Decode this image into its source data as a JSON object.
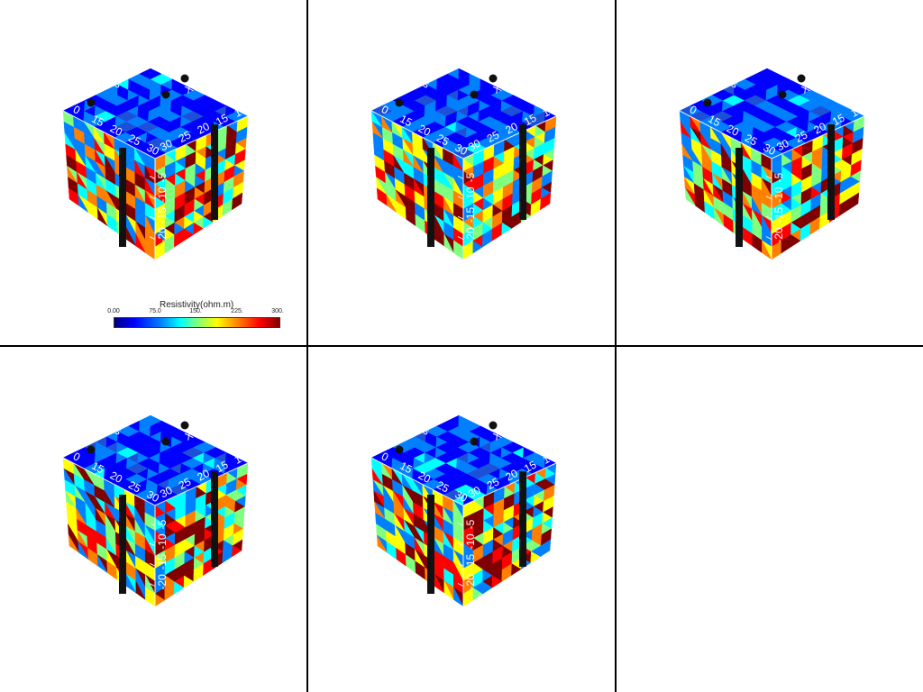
{
  "panels": [
    {
      "id": 1,
      "has_colorbar": true
    },
    {
      "id": 2,
      "has_colorbar": false
    },
    {
      "id": 3,
      "has_colorbar": false
    },
    {
      "id": 4,
      "has_colorbar": false
    },
    {
      "id": 5,
      "has_colorbar": false
    },
    {
      "id": 6,
      "empty": true
    }
  ],
  "axis": {
    "top_left_ticks": [
      "0",
      "15",
      "20",
      "25",
      "30"
    ],
    "top_right_ticks": [
      "30",
      "25",
      "20",
      "15",
      "10"
    ],
    "vertical_ticks": [
      "-5",
      "-10",
      "-15",
      "-20"
    ],
    "label_fragments": [
      "is",
      "X A"
    ]
  },
  "colorbar": {
    "title": "Resistivity(ohm.m)",
    "ticks": [
      "0.00",
      "75.0",
      "150.",
      "225.",
      "300."
    ],
    "range": [
      0,
      300
    ]
  },
  "colormap": [
    "#00007f",
    "#0000ff",
    "#0080ff",
    "#00ffff",
    "#7fff7f",
    "#ffff00",
    "#ff8000",
    "#ff0000",
    "#7f0000"
  ]
}
